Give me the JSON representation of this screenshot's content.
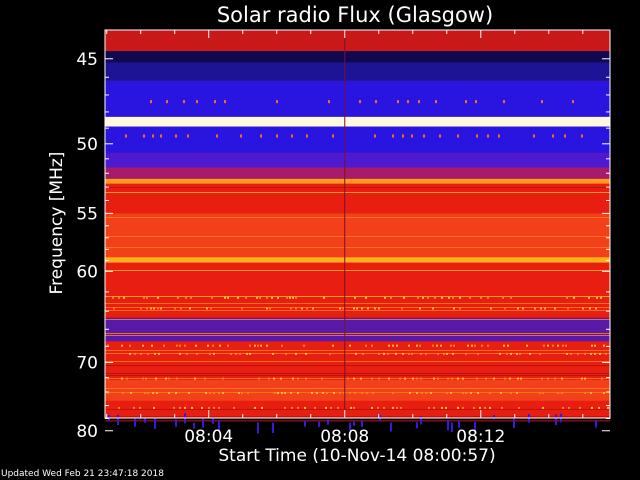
{
  "chart_data": {
    "type": "heatmap",
    "title": "Solar radio Flux (Glasgow)",
    "xlabel": "Start Time (10-Nov-14 08:00:57)",
    "ylabel": "Frequency [MHz]",
    "xlim_minutes_after_0800": [
      0.95,
      15.8
    ],
    "ylim_mhz": [
      45,
      80
    ],
    "y_scale": "reciprocal",
    "x_tick_labels": [
      "08:04",
      "08:08",
      "08:12"
    ],
    "x_tick_minutes_after_0800": [
      4,
      8,
      12
    ],
    "y_tick_labels": [
      "45",
      "50",
      "55",
      "60",
      "70",
      "80"
    ],
    "y_tick_values": [
      45,
      50,
      55,
      60,
      70,
      80
    ],
    "colormap": "black-blue-red-yellow-white",
    "discontinuity_time": "08:08",
    "bands": [
      {
        "fmin": 44.6,
        "fmax": 45.2,
        "level": "dark-blue"
      },
      {
        "fmin": 45.2,
        "fmax": 46.2,
        "level": "navy"
      },
      {
        "fmin": 46.2,
        "fmax": 48.3,
        "level": "blue"
      },
      {
        "fmin": 48.3,
        "fmax": 48.9,
        "level": "white"
      },
      {
        "fmin": 48.9,
        "fmax": 50.6,
        "level": "blue"
      },
      {
        "fmin": 50.6,
        "fmax": 51.6,
        "level": "blue-violet"
      },
      {
        "fmin": 51.6,
        "fmax": 52.4,
        "level": "violet-red"
      },
      {
        "fmin": 52.4,
        "fmax": 52.7,
        "level": "orange"
      },
      {
        "fmin": 52.7,
        "fmax": 55.0,
        "level": "red"
      },
      {
        "fmin": 55.0,
        "fmax": 58.7,
        "level": "red-orange"
      },
      {
        "fmin": 58.7,
        "fmax": 59.2,
        "level": "orange-yellow"
      },
      {
        "fmin": 59.2,
        "fmax": 62.0,
        "level": "red"
      },
      {
        "fmin": 62.0,
        "fmax": 64.7,
        "level": "red"
      },
      {
        "fmin": 64.7,
        "fmax": 67.4,
        "level": "violet"
      },
      {
        "fmin": 67.4,
        "fmax": 72.3,
        "level": "red"
      },
      {
        "fmin": 72.3,
        "fmax": 75.3,
        "level": "red-orange"
      },
      {
        "fmin": 75.3,
        "fmax": 78.3,
        "level": "red"
      },
      {
        "fmin": 78.3,
        "fmax": 80.5,
        "level": "crimson"
      }
    ]
  },
  "footer": {
    "updated": "Updated Wed Feb 21 23:47:18 2018"
  }
}
